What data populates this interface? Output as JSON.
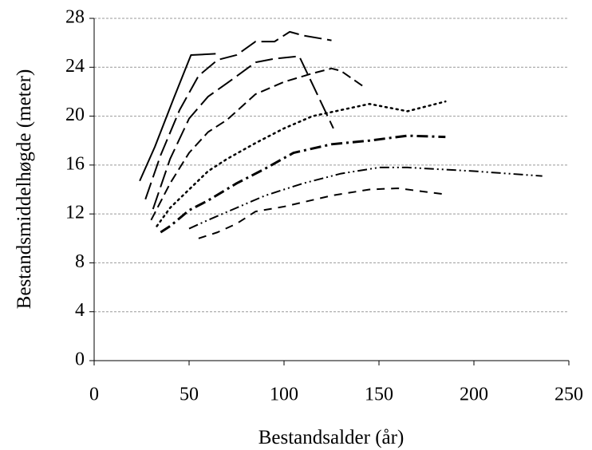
{
  "chart_data": {
    "type": "line",
    "x_label": "Bestandsalder (år)",
    "y_label": "Bestandsmiddelhøgde (meter)",
    "xlim": [
      0,
      250
    ],
    "xticks": [
      0,
      50,
      100,
      150,
      200,
      250
    ],
    "ylim": [
      0,
      28
    ],
    "yticks": [
      0,
      4,
      8,
      12,
      16,
      20,
      24,
      28
    ],
    "grid": true,
    "color": "#000000",
    "series": [
      {
        "style": "solid",
        "x": [
          24,
          32,
          42,
          51,
          64
        ],
        "values": [
          14.7,
          17.5,
          21.5,
          25,
          25.1
        ]
      },
      {
        "style": "long-dash",
        "x": [
          27,
          35,
          45,
          55,
          65,
          75,
          85,
          95,
          103,
          110,
          125
        ],
        "values": [
          13.2,
          16.8,
          20.5,
          23.3,
          24.6,
          25,
          26.1,
          26.1,
          26.9,
          26.6,
          26.2
        ]
      },
      {
        "style": "long-dash",
        "x": [
          31,
          40,
          50,
          60,
          70,
          85,
          95,
          108,
          126
        ],
        "values": [
          12.4,
          16.5,
          19.8,
          21.6,
          22.7,
          24.4,
          24.7,
          24.9,
          19
        ]
      },
      {
        "style": "dash",
        "x": [
          30,
          40,
          50,
          60,
          70,
          85,
          100,
          115,
          125,
          130,
          143
        ],
        "values": [
          11.5,
          14.5,
          17,
          18.7,
          19.7,
          21.8,
          22.8,
          23.5,
          23.9,
          23.7,
          22.3
        ]
      },
      {
        "style": "dot",
        "x": [
          33,
          40,
          50,
          60,
          70,
          85,
          100,
          115,
          130,
          145,
          165,
          185
        ],
        "values": [
          11,
          12.5,
          14,
          15.5,
          16.5,
          17.8,
          19,
          20,
          20.5,
          21,
          20.4,
          21.2
        ]
      },
      {
        "style": "bold-dash-dot",
        "x": [
          35,
          40,
          50,
          60,
          75,
          90,
          105,
          125,
          145,
          165,
          185
        ],
        "values": [
          10.5,
          11,
          12.3,
          13.1,
          14.5,
          15.7,
          17,
          17.7,
          18,
          18.4,
          18.3
        ]
      },
      {
        "style": "dash-dot-dot",
        "x": [
          50,
          60,
          75,
          90,
          110,
          130,
          150,
          165,
          200,
          236
        ],
        "values": [
          10.8,
          11.5,
          12.5,
          13.5,
          14.5,
          15.3,
          15.8,
          15.8,
          15.5,
          15.1
        ]
      },
      {
        "style": "short-dash",
        "x": [
          55,
          65,
          75,
          85,
          100,
          125,
          145,
          160,
          185
        ],
        "values": [
          10,
          10.5,
          11.2,
          12.2,
          12.6,
          13.5,
          14,
          14.1,
          13.6
        ]
      }
    ]
  }
}
